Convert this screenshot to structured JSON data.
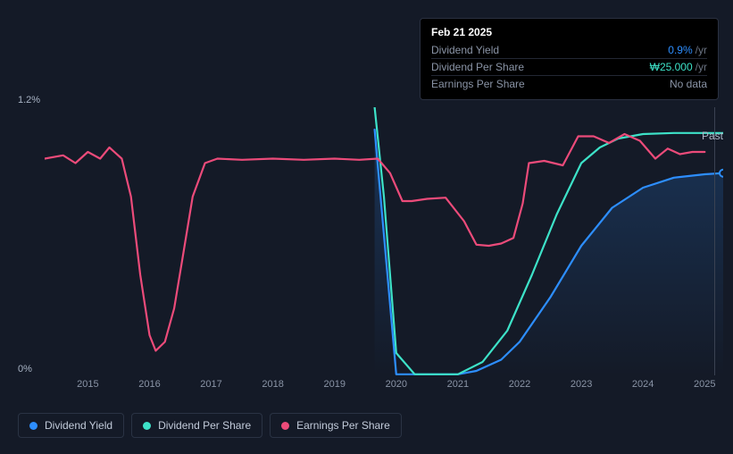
{
  "tooltip": {
    "date": "Feb 21 2025",
    "rows": [
      {
        "label": "Dividend Yield",
        "value": "0.9%",
        "unit": "/yr",
        "color": "#2d8eff"
      },
      {
        "label": "Dividend Per Share",
        "value": "₩25.000",
        "unit": "/yr",
        "color": "#3de2c8"
      },
      {
        "label": "Earnings Per Share",
        "value": "No data",
        "unit": "",
        "color": "#8a94a6"
      }
    ]
  },
  "chart": {
    "type": "line",
    "background_color": "#141a27",
    "grid_color": "#1d2433",
    "y_axis": {
      "min": 0,
      "max": 1.2,
      "ticks": [
        {
          "v": 1.2,
          "label": "1.2%"
        },
        {
          "v": 0,
          "label": "0%"
        }
      ]
    },
    "x_axis": {
      "years": [
        2015,
        2016,
        2017,
        2018,
        2019,
        2020,
        2021,
        2022,
        2023,
        2024,
        2025
      ],
      "min": 2014.3,
      "max": 2025.3
    },
    "hover_x": 2025.15,
    "past_label": "Past",
    "series": [
      {
        "name": "Dividend Yield",
        "color": "#2d8eff",
        "width": 2.2,
        "fill_gradient": [
          "rgba(45,142,255,0.22)",
          "rgba(45,142,255,0.0)"
        ],
        "points": [
          [
            2019.65,
            1.1
          ],
          [
            2020.0,
            0.005
          ],
          [
            2020.5,
            0.005
          ],
          [
            2021.0,
            0.005
          ],
          [
            2021.3,
            0.02
          ],
          [
            2021.7,
            0.07
          ],
          [
            2022.0,
            0.15
          ],
          [
            2022.5,
            0.35
          ],
          [
            2023.0,
            0.58
          ],
          [
            2023.5,
            0.75
          ],
          [
            2024.0,
            0.84
          ],
          [
            2024.5,
            0.885
          ],
          [
            2025.0,
            0.9
          ],
          [
            2025.3,
            0.905
          ]
        ]
      },
      {
        "name": "Dividend Per Share",
        "color": "#3de2c8",
        "width": 2.2,
        "points": [
          [
            2019.65,
            1.2
          ],
          [
            2019.8,
            0.8
          ],
          [
            2020.0,
            0.1
          ],
          [
            2020.3,
            0.005
          ],
          [
            2020.7,
            0.005
          ],
          [
            2021.0,
            0.005
          ],
          [
            2021.4,
            0.06
          ],
          [
            2021.8,
            0.2
          ],
          [
            2022.2,
            0.45
          ],
          [
            2022.6,
            0.72
          ],
          [
            2023.0,
            0.95
          ],
          [
            2023.3,
            1.02
          ],
          [
            2023.6,
            1.06
          ],
          [
            2024.0,
            1.08
          ],
          [
            2024.5,
            1.085
          ],
          [
            2025.0,
            1.085
          ],
          [
            2025.3,
            1.085
          ]
        ]
      },
      {
        "name": "Earnings Per Share",
        "color": "#ec4b7a",
        "width": 2.2,
        "points": [
          [
            2014.3,
            0.97
          ],
          [
            2014.6,
            0.985
          ],
          [
            2014.8,
            0.95
          ],
          [
            2015.0,
            1.0
          ],
          [
            2015.2,
            0.97
          ],
          [
            2015.35,
            1.02
          ],
          [
            2015.55,
            0.97
          ],
          [
            2015.7,
            0.8
          ],
          [
            2015.85,
            0.45
          ],
          [
            2016.0,
            0.18
          ],
          [
            2016.1,
            0.11
          ],
          [
            2016.25,
            0.15
          ],
          [
            2016.4,
            0.3
          ],
          [
            2016.55,
            0.55
          ],
          [
            2016.7,
            0.8
          ],
          [
            2016.9,
            0.95
          ],
          [
            2017.1,
            0.97
          ],
          [
            2017.5,
            0.965
          ],
          [
            2018.0,
            0.97
          ],
          [
            2018.5,
            0.965
          ],
          [
            2019.0,
            0.97
          ],
          [
            2019.4,
            0.965
          ],
          [
            2019.7,
            0.97
          ],
          [
            2019.9,
            0.905
          ],
          [
            2020.1,
            0.78
          ],
          [
            2020.25,
            0.78
          ],
          [
            2020.5,
            0.79
          ],
          [
            2020.8,
            0.795
          ],
          [
            2021.1,
            0.69
          ],
          [
            2021.3,
            0.585
          ],
          [
            2021.5,
            0.58
          ],
          [
            2021.7,
            0.59
          ],
          [
            2021.9,
            0.615
          ],
          [
            2022.05,
            0.77
          ],
          [
            2022.15,
            0.95
          ],
          [
            2022.4,
            0.96
          ],
          [
            2022.7,
            0.94
          ],
          [
            2022.95,
            1.07
          ],
          [
            2023.2,
            1.07
          ],
          [
            2023.45,
            1.04
          ],
          [
            2023.7,
            1.08
          ],
          [
            2023.95,
            1.05
          ],
          [
            2024.2,
            0.97
          ],
          [
            2024.4,
            1.015
          ],
          [
            2024.6,
            0.99
          ],
          [
            2024.8,
            1.0
          ],
          [
            2025.0,
            1.0
          ]
        ]
      }
    ]
  },
  "legend": [
    {
      "label": "Dividend Yield",
      "color": "#2d8eff"
    },
    {
      "label": "Dividend Per Share",
      "color": "#3de2c8"
    },
    {
      "label": "Earnings Per Share",
      "color": "#ec4b7a"
    }
  ]
}
